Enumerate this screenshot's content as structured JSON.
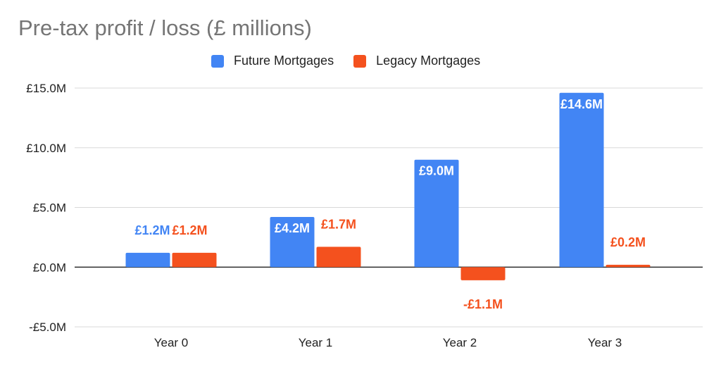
{
  "chart_data": {
    "type": "bar",
    "title": "Pre-tax profit / loss (£ millions)",
    "categories": [
      "Year 0",
      "Year 1",
      "Year 2",
      "Year 3"
    ],
    "series": [
      {
        "name": "Future Mortgages",
        "color": "#4285f4",
        "values": [
          1.2,
          4.2,
          9.0,
          14.6
        ],
        "labels": [
          "£1.2M",
          "£4.2M",
          "£9.0M",
          "£14.6M"
        ]
      },
      {
        "name": "Legacy Mortgages",
        "color": "#f4511e",
        "values": [
          1.2,
          1.7,
          -1.1,
          0.2
        ],
        "labels": [
          "£1.2M",
          "£1.7M",
          "-£1.1M",
          "£0.2M"
        ]
      }
    ],
    "y_ticks": [
      {
        "value": 15,
        "label": "£15.0M"
      },
      {
        "value": 10,
        "label": "£10.0M"
      },
      {
        "value": 5,
        "label": "£5.0M"
      },
      {
        "value": 0,
        "label": "£0.0M"
      },
      {
        "value": -5,
        "label": "-£5.0M"
      }
    ],
    "ylim": [
      -5,
      15
    ],
    "grid": true,
    "legend_position": "top"
  }
}
